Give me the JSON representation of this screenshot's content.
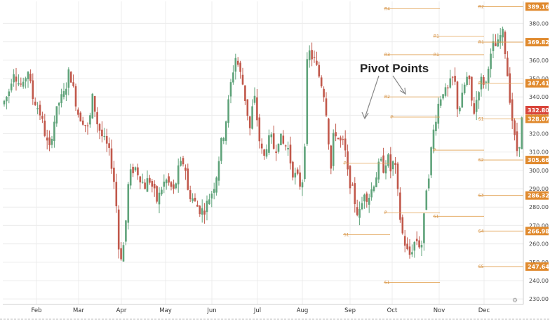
{
  "chart_data": {
    "type": "candlestick",
    "annotation": "Pivot Points",
    "y_ticks": [
      230,
      240,
      250,
      260,
      270,
      280,
      290,
      300,
      310,
      320,
      330,
      340,
      350,
      360,
      370,
      380
    ],
    "ylim": [
      227,
      392
    ],
    "months": [
      "Feb",
      "Mar",
      "Apr",
      "May",
      "Jun",
      "Jul",
      "Aug",
      "Sep",
      "Oct",
      "Nov",
      "Dec"
    ],
    "colors": {
      "up": "#5fa37a",
      "down": "#c1584b",
      "pivot": "#e2a253",
      "tag": "#e08a2e",
      "last": "#d9453a",
      "grid": "#ececec"
    },
    "price_tags": [
      {
        "value": "389.16"
      },
      {
        "value": "369.82"
      },
      {
        "value": "347.41"
      },
      {
        "value": "332.80",
        "last": true
      },
      {
        "value": "328.07"
      },
      {
        "value": "305.66"
      },
      {
        "value": "286.32"
      },
      {
        "value": "266.98"
      },
      {
        "value": "247.64"
      }
    ],
    "pivot_levels": [
      {
        "label": "R4",
        "value": 388
      },
      {
        "label": "R3",
        "value": 363
      },
      {
        "label": "R2",
        "value": 340
      },
      {
        "label": "P",
        "value": 304
      },
      {
        "label": "P",
        "value": 277
      },
      {
        "label": "S1",
        "value": 239
      },
      {
        "label": "R1",
        "value": 363
      },
      {
        "label": "P",
        "value": 329
      },
      {
        "label": "S1",
        "value": 265
      },
      {
        "label": "R1",
        "value": 373
      },
      {
        "label": "P",
        "value": 311
      },
      {
        "label": "S1",
        "value": 275
      },
      {
        "label": "R2",
        "value": 389.16
      },
      {
        "label": "R1",
        "value": 369.82
      },
      {
        "label": "P",
        "value": 347.41
      },
      {
        "label": "S1",
        "value": 328.07
      },
      {
        "label": "S2",
        "value": 305.66
      },
      {
        "label": "S3",
        "value": 286.32
      },
      {
        "label": "S4",
        "value": 266.98
      },
      {
        "label": "S5",
        "value": 247.64
      }
    ],
    "segments": [
      [
        0,
        336
      ],
      [
        8,
        342
      ],
      [
        15,
        355
      ],
      [
        22,
        348
      ],
      [
        30,
        345
      ],
      [
        35,
        357
      ],
      [
        42,
        340
      ],
      [
        48,
        336
      ],
      [
        54,
        330
      ],
      [
        60,
        320
      ],
      [
        66,
        310
      ],
      [
        72,
        325
      ],
      [
        80,
        337
      ],
      [
        88,
        342
      ],
      [
        95,
        355
      ],
      [
        100,
        345
      ],
      [
        108,
        330
      ],
      [
        115,
        327
      ],
      [
        122,
        322
      ],
      [
        128,
        340
      ],
      [
        135,
        325
      ],
      [
        142,
        318
      ],
      [
        150,
        312
      ],
      [
        157,
        300
      ],
      [
        162,
        280
      ],
      [
        165,
        258
      ],
      [
        170,
        252
      ],
      [
        175,
        270
      ],
      [
        178,
        290
      ],
      [
        182,
        298
      ],
      [
        188,
        302
      ],
      [
        195,
        297
      ],
      [
        202,
        291
      ],
      [
        208,
        296
      ],
      [
        215,
        289
      ],
      [
        220,
        283
      ],
      [
        226,
        290
      ],
      [
        232,
        295
      ],
      [
        238,
        292
      ],
      [
        244,
        288
      ],
      [
        250,
        300
      ],
      [
        256,
        305
      ],
      [
        260,
        302
      ],
      [
        264,
        288
      ],
      [
        270,
        285
      ],
      [
        276,
        281
      ],
      [
        282,
        278
      ],
      [
        288,
        279
      ],
      [
        294,
        285
      ],
      [
        300,
        290
      ],
      [
        306,
        300
      ],
      [
        310,
        313
      ],
      [
        315,
        320
      ],
      [
        320,
        332
      ],
      [
        326,
        350
      ],
      [
        332,
        362
      ],
      [
        337,
        355
      ],
      [
        342,
        347
      ],
      [
        348,
        333
      ],
      [
        352,
        322
      ],
      [
        356,
        335
      ],
      [
        360,
        340
      ],
      [
        364,
        320
      ],
      [
        368,
        312
      ],
      [
        372,
        306
      ],
      [
        376,
        314
      ],
      [
        382,
        318
      ],
      [
        388,
        310
      ],
      [
        394,
        319
      ],
      [
        400,
        314
      ],
      [
        406,
        313
      ],
      [
        410,
        305
      ],
      [
        414,
        298
      ],
      [
        420,
        296
      ],
      [
        426,
        290
      ],
      [
        430,
        310
      ],
      [
        433,
        355
      ],
      [
        436,
        365
      ],
      [
        440,
        362
      ],
      [
        444,
        360
      ],
      [
        448,
        355
      ],
      [
        452,
        350
      ],
      [
        456,
        345
      ],
      [
        460,
        337
      ],
      [
        464,
        318
      ],
      [
        468,
        300
      ],
      [
        472,
        322
      ],
      [
        476,
        320
      ],
      [
        480,
        315
      ],
      [
        484,
        316
      ],
      [
        488,
        310
      ],
      [
        492,
        297
      ],
      [
        496,
        292
      ],
      [
        500,
        287
      ],
      [
        504,
        278
      ],
      [
        508,
        276
      ],
      [
        512,
        282
      ],
      [
        516,
        290
      ],
      [
        520,
        284
      ],
      [
        526,
        290
      ],
      [
        532,
        297
      ],
      [
        538,
        305
      ],
      [
        544,
        300
      ],
      [
        548,
        310
      ],
      [
        552,
        299
      ],
      [
        556,
        304
      ],
      [
        560,
        300
      ],
      [
        564,
        283
      ],
      [
        568,
        268
      ],
      [
        572,
        262
      ],
      [
        576,
        256
      ],
      [
        580,
        254
      ],
      [
        584,
        258
      ],
      [
        588,
        262
      ],
      [
        592,
        262
      ],
      [
        596,
        256
      ],
      [
        600,
        272
      ],
      [
        604,
        292
      ],
      [
        608,
        300
      ],
      [
        612,
        317
      ],
      [
        616,
        326
      ],
      [
        620,
        335
      ],
      [
        624,
        340
      ],
      [
        628,
        344
      ],
      [
        632,
        342
      ],
      [
        636,
        345
      ],
      [
        640,
        350
      ],
      [
        644,
        349
      ],
      [
        648,
        335
      ],
      [
        652,
        335
      ],
      [
        656,
        342
      ],
      [
        660,
        350
      ],
      [
        664,
        350
      ],
      [
        668,
        338
      ],
      [
        672,
        332
      ],
      [
        676,
        340
      ],
      [
        680,
        348
      ],
      [
        684,
        350
      ],
      [
        688,
        345
      ],
      [
        692,
        358
      ],
      [
        696,
        362
      ],
      [
        700,
        370
      ],
      [
        704,
        366
      ],
      [
        708,
        372
      ],
      [
        712,
        376
      ],
      [
        716,
        365
      ],
      [
        720,
        350
      ],
      [
        724,
        335
      ],
      [
        728,
        322
      ],
      [
        732,
        310
      ],
      [
        736,
        314
      ],
      [
        740,
        328
      ],
      [
        744,
        333
      ]
    ]
  }
}
